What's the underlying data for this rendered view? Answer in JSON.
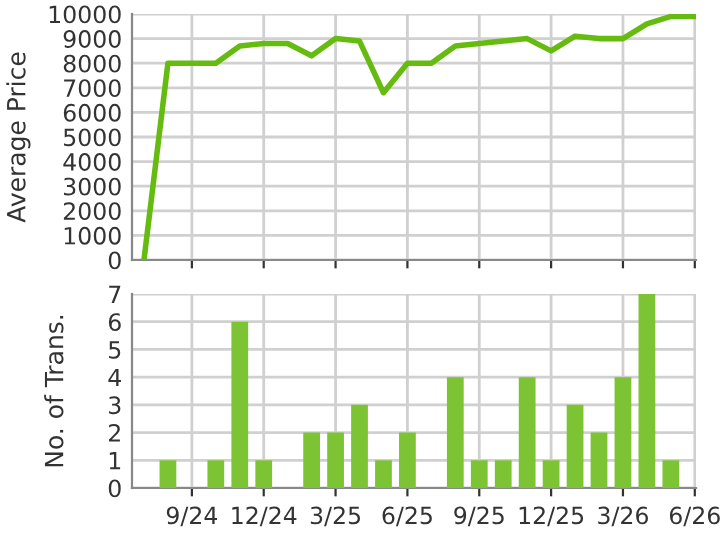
{
  "chart_data": [
    {
      "type": "line",
      "ylabel": "Average Price",
      "series": [
        {
          "color": "#66bb11",
          "values": [
            0,
            8000,
            8000,
            8000,
            8700,
            8800,
            8800,
            8300,
            9000,
            8900,
            6800,
            8000,
            8000,
            8700,
            8800,
            8900,
            9000,
            8500,
            9100,
            9000,
            9000,
            9600,
            9900,
            9900
          ]
        }
      ],
      "ylim": [
        0,
        10000
      ],
      "yticks": [
        0,
        1000,
        2000,
        3000,
        4000,
        5000,
        6000,
        7000,
        8000,
        9000,
        10000
      ],
      "grid": true,
      "tick_labels": "y"
    },
    {
      "type": "bar",
      "ylabel": "No. of Trans.",
      "categories": [
        null,
        null,
        "9/24",
        null,
        null,
        "12/24",
        null,
        null,
        "3/25",
        null,
        null,
        "6/25",
        null,
        null,
        "9/25",
        null,
        null,
        "12/25",
        null,
        null,
        "3/26",
        null,
        null,
        "6/26"
      ],
      "values": [
        0,
        1,
        0,
        1,
        6,
        1,
        0,
        2,
        2,
        3,
        1,
        2,
        0,
        4,
        1,
        1,
        4,
        1,
        3,
        2,
        4,
        7,
        1,
        0
      ],
      "color": "#7cc433",
      "ylim": [
        0,
        7
      ],
      "yticks": [
        0,
        1,
        2,
        3,
        4,
        5,
        6,
        7
      ],
      "grid": true
    }
  ]
}
